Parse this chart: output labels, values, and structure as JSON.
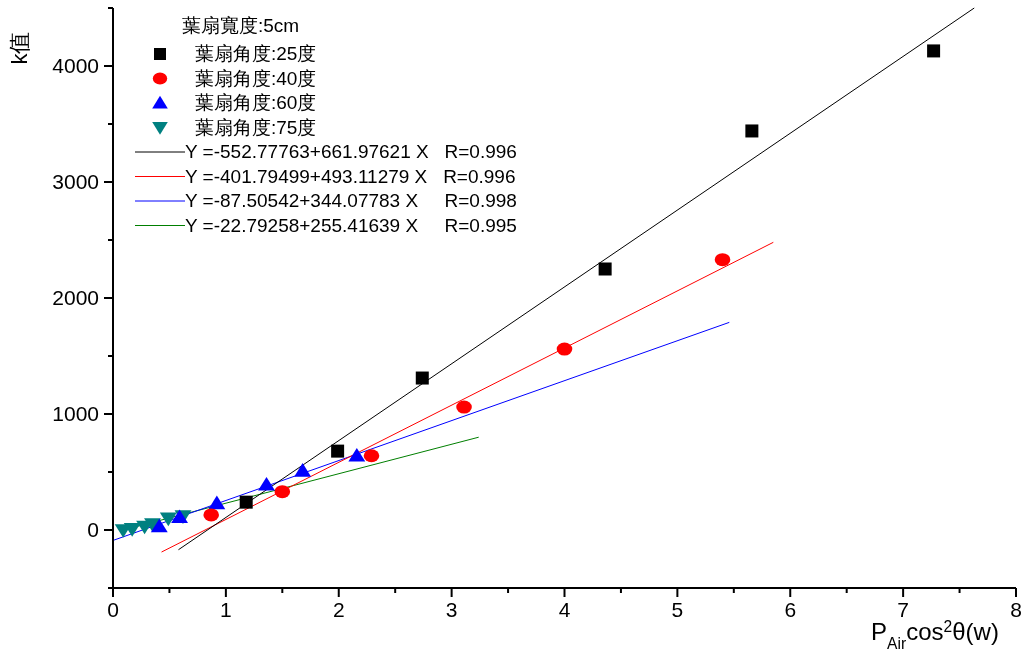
{
  "chart_data": {
    "type": "scatter",
    "xlabel": "P$_{Air}$cos$^{2}$θ(w)",
    "ylabel": "k值",
    "legend_title": "葉扇寬度:5cm",
    "legend": "top left",
    "grid": false,
    "xlim": [
      0,
      8
    ],
    "xticks": [
      0,
      {
        "value": 0.5,
        "label": null
      },
      1,
      {
        "value": 1.5,
        "label": null
      },
      2,
      {
        "value": 2.5,
        "label": null
      },
      3,
      {
        "value": 3.5,
        "label": null
      },
      4,
      {
        "value": 4.5,
        "label": null
      },
      5,
      {
        "value": 5.5,
        "label": null
      },
      6,
      {
        "value": 6.5,
        "label": null
      },
      7,
      {
        "value": 7.5,
        "label": null
      },
      8
    ],
    "ylim": [
      -500,
      4500
    ],
    "yticks": [
      {
        "value": -500,
        "label": null
      },
      0,
      {
        "value": 500,
        "label": null
      },
      1000,
      {
        "value": 1500,
        "label": null
      },
      2000,
      {
        "value": 2500,
        "label": null
      },
      3000,
      {
        "value": 3500,
        "label": null
      },
      4000,
      {
        "value": 4500,
        "label": null
      }
    ],
    "series": [
      {
        "name": "葉扇角度:25度",
        "marker": "square",
        "color": "#000000",
        "x": [
          1.18,
          1.99,
          2.74,
          4.36,
          5.66,
          7.27
        ],
        "values": [
          240,
          680,
          1310,
          2250,
          3440,
          4130
        ]
      },
      {
        "name": "葉扇角度:40度",
        "marker": "circle",
        "color": "#ff0000",
        "x": [
          0.87,
          1.5,
          2.29,
          3.11,
          4.0,
          5.4
        ],
        "values": [
          130,
          330,
          640,
          1060,
          1560,
          2330
        ]
      },
      {
        "name": "葉扇角度:60度",
        "marker": "triangle",
        "color": "#0000ff",
        "x": [
          0.41,
          0.59,
          0.92,
          1.36,
          1.68,
          2.16
        ],
        "values": [
          30,
          110,
          230,
          390,
          510,
          640
        ]
      },
      {
        "name": "葉扇角度:75度",
        "marker": "triangle-down",
        "color": "#008080",
        "x": [
          0.09,
          0.17,
          0.28,
          0.35,
          0.49,
          0.62
        ],
        "values": [
          0,
          10,
          30,
          50,
          100,
          120
        ]
      },
      {
        "name": "Y =-552.77763+661.97621 X   R=0.996",
        "type": "line",
        "marker": "none",
        "color": "#000000",
        "x": [
          0.58,
          7.63
        ],
        "values": [
          -170,
          4500
        ]
      },
      {
        "name": "Y =-401.79499+493.11279 X   R=0.996",
        "type": "line",
        "marker": "none",
        "color": "#ff0000",
        "x": [
          0.43,
          5.85
        ],
        "values": [
          -190,
          2480
        ]
      },
      {
        "name": "Y =-87.50542+344.07783 X     R=0.998",
        "type": "line",
        "marker": "none",
        "color": "#0000ff",
        "x": [
          0,
          5.46
        ],
        "values": [
          -90,
          1790
        ]
      },
      {
        "name": "Y =-22.79258+255.41639 X     R=0.995",
        "type": "line",
        "marker": "none",
        "color": "#007f00",
        "x": [
          0.09,
          3.24
        ],
        "values": [
          0,
          800
        ]
      }
    ]
  }
}
